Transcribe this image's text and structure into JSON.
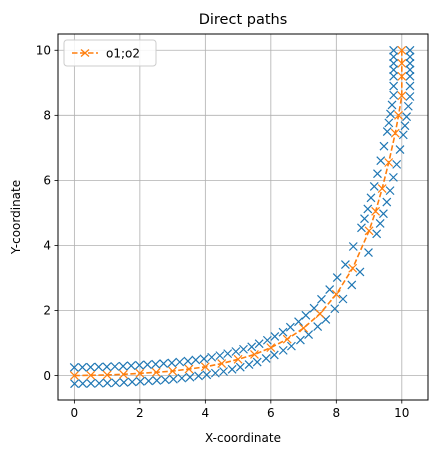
{
  "chart_data": {
    "type": "line",
    "title": "Direct paths",
    "xlabel": "X-coordinate",
    "ylabel": "Y-coordinate",
    "xlim": [
      -0.5,
      10.8
    ],
    "ylim": [
      -0.75,
      10.5
    ],
    "xticks": [
      0,
      2,
      4,
      6,
      8,
      10
    ],
    "yticks": [
      0,
      2,
      4,
      6,
      8,
      10
    ],
    "grid": true,
    "legend_position": "upper-left",
    "series": [
      {
        "name": "o1;o2",
        "style": "dashed line with x markers",
        "color": "#ff7f0e",
        "x": [
          0,
          0.5,
          1,
          1.5,
          2,
          2.5,
          3,
          3.5,
          4,
          4.5,
          5,
          5.5,
          6,
          6.5,
          7,
          7.5,
          8,
          8.5,
          9,
          9.2,
          9.4,
          9.6,
          9.8,
          9.9,
          10,
          10,
          10,
          10
        ],
        "y": [
          0,
          0.01,
          0.02,
          0.04,
          0.07,
          0.1,
          0.14,
          0.2,
          0.27,
          0.37,
          0.5,
          0.65,
          0.86,
          1.12,
          1.46,
          1.9,
          2.5,
          3.3,
          4.45,
          5.05,
          5.75,
          6.55,
          7.45,
          8.0,
          8.6,
          9.2,
          9.6,
          10.0
        ]
      },
      {
        "name": "",
        "style": "x markers only",
        "color": "#1f77b4",
        "x": [
          0,
          0.5,
          1,
          1.5,
          2,
          2.5,
          3,
          3.5,
          4,
          4.5,
          5,
          5.5,
          6,
          6.5,
          7,
          7.5,
          8,
          8.5,
          9,
          9.2,
          9.4,
          9.6,
          9.8,
          9.9,
          10,
          10,
          10,
          10
        ],
        "y": [
          0,
          0.01,
          0.02,
          0.04,
          0.07,
          0.1,
          0.14,
          0.2,
          0.27,
          0.37,
          0.5,
          0.65,
          0.86,
          1.12,
          1.46,
          1.9,
          2.5,
          3.3,
          4.45,
          5.05,
          5.75,
          6.55,
          7.45,
          8.0,
          8.6,
          9.2,
          9.6,
          10.0
        ],
        "offset": 0.25
      }
    ]
  }
}
